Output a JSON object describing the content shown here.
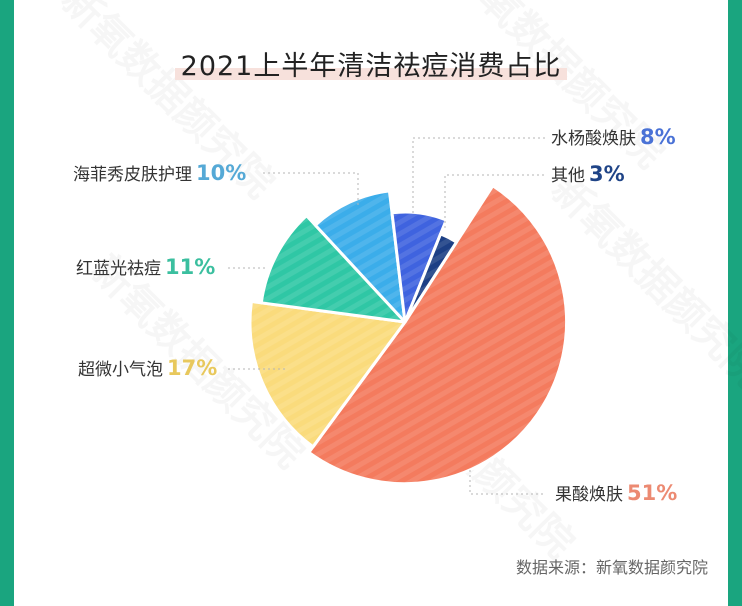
{
  "title": "2021上半年清洁祛痘消费占比",
  "source": "数据来源：新氧数据颜究院",
  "watermark": "新氧数据颜究院",
  "colors": {
    "frame": "#1aa57f",
    "果酸焕肤": "#f47b5e",
    "超微小气泡": "#fadb7c",
    "红蓝光祛痘": "#2fc7a5",
    "海菲秀皮肤护理": "#3badea",
    "水杨酸焕肤": "#3f63df",
    "其他": "#1c3f85"
  },
  "labels": {
    "salicylic": {
      "name": "水杨酸焕肤",
      "pct": "8%",
      "color": "#4a72d6"
    },
    "other": {
      "name": "其他",
      "pct": "3%",
      "color": "#1f4487"
    },
    "hydrafacial": {
      "name": "海菲秀皮肤护理",
      "pct": "10%",
      "color": "#55a9d6"
    },
    "bluelight": {
      "name": "红蓝光祛痘",
      "pct": "11%",
      "color": "#3bbf9f"
    },
    "microbubble": {
      "name": "超微小气泡",
      "pct": "17%",
      "color": "#e8c85c"
    },
    "fruitacid": {
      "name": "果酸焕肤",
      "pct": "51%",
      "color": "#ec8a72"
    }
  },
  "chart_data": {
    "type": "pie",
    "title": "2021上半年清洁祛痘消费占比",
    "categories": [
      "果酸焕肤",
      "超微小气泡",
      "红蓝光祛痘",
      "海菲秀皮肤护理",
      "水杨酸焕肤",
      "其他"
    ],
    "values": [
      51,
      17,
      11,
      10,
      8,
      3
    ],
    "unit": "%",
    "style": "rose-like pie with varying radii, striped fill, dashed leader lines",
    "source": "数据来源：新氧数据颜究院"
  }
}
